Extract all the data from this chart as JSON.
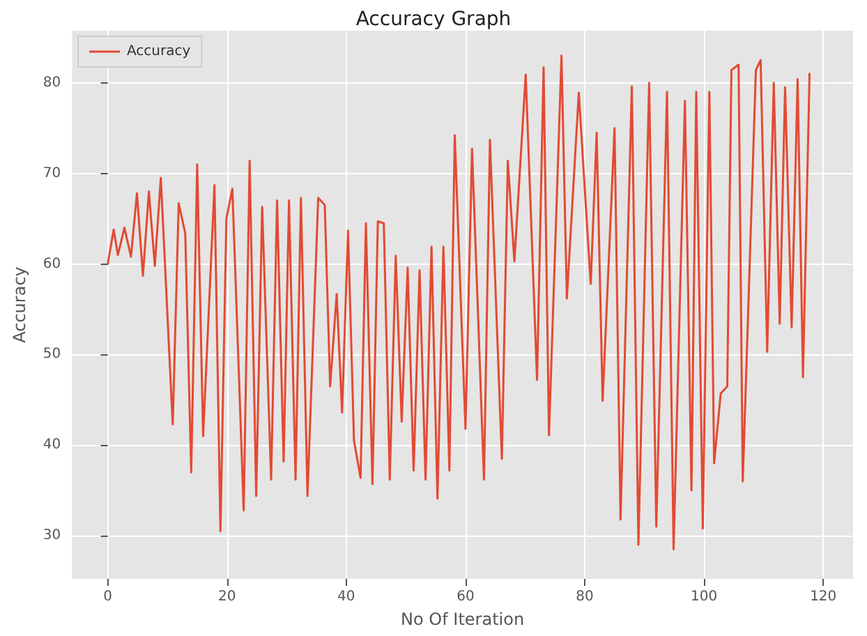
{
  "chart_data": {
    "type": "line",
    "title": "Accuracy Graph",
    "xlabel": "No Of Iteration",
    "ylabel": "Accuracy",
    "xlim": [
      -6,
      125
    ],
    "xticks": [
      0,
      20,
      40,
      60,
      80,
      100,
      120
    ],
    "ylim": [
      25.25,
      85.75
    ],
    "yticks": [
      30,
      40,
      50,
      60,
      70,
      80
    ],
    "grid": true,
    "legend": "top left",
    "marker": "none",
    "line_style": "solid",
    "series": [
      {
        "name": "Accuracy",
        "color": "#e24a33",
        "x": [
          0,
          1,
          1.7,
          2.8,
          3.9,
          4.9,
          5.9,
          6.9,
          7.9,
          8.9,
          10.9,
          11.9,
          13,
          14,
          15,
          16,
          17.9,
          18.9,
          19.9,
          20.9,
          22.8,
          23.8,
          24.9,
          25.9,
          27.4,
          28.4,
          29.5,
          30.4,
          31.5,
          32.4,
          33.5,
          35.3,
          36.4,
          37.3,
          38.4,
          39.3,
          40.3,
          41.3,
          42.4,
          43.3,
          44.4,
          45.3,
          46.3,
          47.3,
          48.3,
          49.3,
          50.3,
          51.3,
          52.3,
          53.3,
          54.3,
          55.3,
          56.3,
          57.3,
          58.2,
          60,
          61.1,
          63.1,
          64.1,
          66.1,
          67.1,
          68.2,
          70.1,
          72,
          73.1,
          74,
          76.1,
          77,
          79,
          81,
          82,
          83,
          85,
          86,
          87.9,
          89,
          90.8,
          92,
          93.8,
          94.9,
          96.8,
          97.9,
          98.7,
          99.8,
          100.9,
          101.7,
          102.8,
          103.9,
          104.6,
          105.8,
          106.5,
          108.7,
          109.5,
          110.6,
          111.7,
          112.7,
          113.6,
          114.7,
          115.7,
          116.6,
          117.7
        ],
        "values": [
          60,
          63.8,
          61,
          64,
          60.8,
          67.8,
          58.7,
          68,
          59.8,
          69.5,
          42.3,
          66.7,
          63.4,
          37,
          71,
          41,
          68.7,
          30.5,
          65,
          68.3,
          32.8,
          71.4,
          34.4,
          66.3,
          36.2,
          67,
          38.2,
          67,
          36.2,
          67.3,
          34.4,
          67.3,
          66.5,
          46.5,
          56.7,
          43.6,
          63.7,
          40.5,
          36.4,
          64.5,
          35.7,
          64.7,
          64.5,
          36.2,
          60.9,
          42.6,
          59.6,
          37.2,
          59.3,
          36.2,
          61.9,
          34.1,
          61.9,
          37.2,
          74.2,
          41.8,
          72.7,
          36.2,
          73.7,
          38.5,
          71.4,
          60.3,
          80.9,
          47.2,
          81.7,
          41.1,
          83,
          56.2,
          78.9,
          57.8,
          74.5,
          44.9,
          75,
          31.8,
          79.6,
          29,
          80,
          31,
          79,
          28.5,
          78,
          35,
          79,
          30.8,
          79,
          38,
          45.7,
          46.5,
          81.4,
          82,
          36,
          81.4,
          82.5,
          50.3,
          80,
          53.4,
          79.5,
          53,
          80.4,
          47.5,
          81
        ]
      }
    ]
  }
}
